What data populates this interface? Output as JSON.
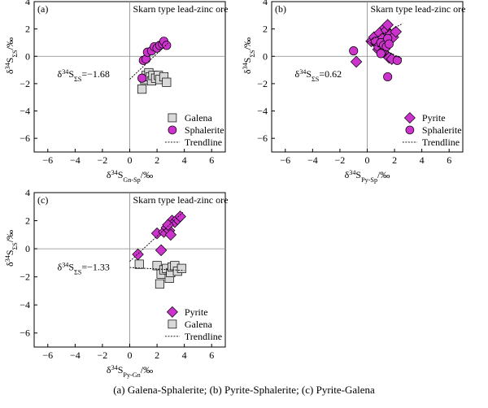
{
  "figure_caption": "(a) Galena-Sphalerite; (b) Pyrite-Sphalerite; (c) Pyrite-Galena",
  "colors": {
    "mineral_fill": "#cc33cc",
    "galena_fill": "#d9d9d9",
    "stroke": "#000000",
    "axis": "#888888"
  },
  "chart_data": [
    {
      "panel": "(a)",
      "type": "scatter",
      "title": "Skarn type lead-zinc ore",
      "xlabel_main": "δ",
      "xlabel_sup": "34",
      "xlabel_after": "S",
      "xlabel_sub": "Gn-Sp",
      "xlabel_tail": "/‰",
      "ylabel_main": "δ",
      "ylabel_sup": "34",
      "ylabel_after": "S",
      "ylabel_sub": "ΣS",
      "ylabel_tail": "/‰",
      "xlim": [
        -7,
        7
      ],
      "ylim": [
        -7,
        4
      ],
      "xticks": [
        -6,
        -4,
        -2,
        0,
        2,
        4,
        6
      ],
      "yticks": [
        4,
        2,
        0,
        -2,
        -4,
        -6
      ],
      "annotation": {
        "text_main": "δ",
        "text_sup": "34",
        "text_after": "S",
        "text_sub": "ΣS",
        "text_tail": "=−1.68"
      },
      "legend": [
        {
          "name": "Galena",
          "marker": "square",
          "color": "#d9d9d9"
        },
        {
          "name": "Sphalerite",
          "marker": "circle",
          "color": "#cc33cc"
        },
        {
          "name": "Trendline",
          "marker": "line"
        }
      ],
      "series": [
        {
          "name": "Galena",
          "marker": "square",
          "color": "#d9d9d9",
          "points": [
            [
              0.9,
              -2.4
            ],
            [
              1.1,
              -1.7
            ],
            [
              1.2,
              -1.4
            ],
            [
              1.4,
              -1.2
            ],
            [
              1.5,
              -1.5
            ],
            [
              1.6,
              -1.8
            ],
            [
              1.7,
              -1.4
            ],
            [
              1.9,
              -1.6
            ],
            [
              2.1,
              -1.4
            ],
            [
              2.2,
              -1.7
            ],
            [
              2.5,
              -1.5
            ],
            [
              2.7,
              -1.9
            ]
          ]
        },
        {
          "name": "Sphalerite",
          "marker": "circle",
          "color": "#cc33cc",
          "points": [
            [
              0.9,
              -1.6
            ],
            [
              1.0,
              -0.3
            ],
            [
              1.2,
              -0.2
            ],
            [
              1.3,
              0.3
            ],
            [
              1.6,
              0.4
            ],
            [
              1.8,
              0.7
            ],
            [
              2.0,
              0.6
            ],
            [
              2.2,
              0.8
            ],
            [
              2.4,
              0.9
            ],
            [
              2.5,
              1.1
            ],
            [
              2.7,
              0.8
            ]
          ]
        }
      ],
      "trendlines": [
        {
          "from": [
            0,
            -1.68
          ],
          "to": [
            2.8,
            0.95
          ]
        }
      ]
    },
    {
      "panel": "(b)",
      "type": "scatter",
      "title": "Skarn type lead-zinc ore",
      "xlabel_main": "δ",
      "xlabel_sup": "34",
      "xlabel_after": "S",
      "xlabel_sub": "Py-Sp",
      "xlabel_tail": "/‰",
      "ylabel_main": "δ",
      "ylabel_sup": "34",
      "ylabel_after": "S",
      "ylabel_sub": "ΣS",
      "ylabel_tail": "/‰",
      "xlim": [
        -7,
        7
      ],
      "ylim": [
        -7,
        4
      ],
      "xticks": [
        -6,
        -4,
        -2,
        0,
        2,
        4,
        6
      ],
      "yticks": [
        4,
        2,
        0,
        -2,
        -4,
        -6
      ],
      "annotation": {
        "text_main": "δ",
        "text_sup": "34",
        "text_after": "S",
        "text_sub": "ΣS",
        "text_tail": "=0.62"
      },
      "legend": [
        {
          "name": "Pyrite",
          "marker": "diamond",
          "color": "#cc33cc"
        },
        {
          "name": "Sphalerite",
          "marker": "circle",
          "color": "#cc33cc"
        },
        {
          "name": "Trendline",
          "marker": "line"
        }
      ],
      "series": [
        {
          "name": "Pyrite",
          "marker": "diamond",
          "color": "#cc33cc",
          "points": [
            [
              -0.8,
              -0.4
            ],
            [
              0.3,
              1.1
            ],
            [
              0.5,
              1.4
            ],
            [
              0.7,
              0.9
            ],
            [
              0.9,
              1.7
            ],
            [
              1.1,
              1.3
            ],
            [
              1.3,
              2.1
            ],
            [
              1.4,
              1.9
            ],
            [
              1.5,
              2.3
            ],
            [
              1.7,
              1.6
            ],
            [
              1.9,
              1.4
            ],
            [
              2.1,
              1.8
            ],
            [
              1.3,
              0.2
            ],
            [
              1.6,
              -0.1
            ],
            [
              1.8,
              -0.2
            ],
            [
              0.8,
              0.5
            ]
          ]
        },
        {
          "name": "Sphalerite",
          "marker": "circle",
          "color": "#cc33cc",
          "points": [
            [
              -1.0,
              0.4
            ],
            [
              0.6,
              1.1
            ],
            [
              0.8,
              0.7
            ],
            [
              1.0,
              1.0
            ],
            [
              1.1,
              0.3
            ],
            [
              1.2,
              0.8
            ],
            [
              1.4,
              0.7
            ],
            [
              1.5,
              1.3
            ],
            [
              1.6,
              0.9
            ],
            [
              1.5,
              -1.5
            ],
            [
              2.2,
              -0.3
            ],
            [
              1.0,
              0.2
            ]
          ]
        }
      ],
      "trendlines": [
        {
          "from": [
            0,
            1.05
          ],
          "to": [
            2.6,
            2.4
          ]
        },
        {
          "from": [
            0,
            1.1
          ],
          "to": [
            2.6,
            -0.2
          ]
        }
      ]
    },
    {
      "panel": "(c)",
      "type": "scatter",
      "title": "Skarn type lead-zinc ore",
      "xlabel_main": "δ",
      "xlabel_sup": "34",
      "xlabel_after": "S",
      "xlabel_sub": "Py-Gn",
      "xlabel_tail": "/‰",
      "ylabel_main": "δ",
      "ylabel_sup": "34",
      "ylabel_after": "S",
      "ylabel_sub": "ΣS",
      "ylabel_tail": "/‰",
      "xlim": [
        -7,
        7
      ],
      "ylim": [
        -7,
        4
      ],
      "xticks": [
        -6,
        -4,
        -2,
        0,
        2,
        4,
        6
      ],
      "yticks": [
        4,
        2,
        0,
        -2,
        -4,
        -6
      ],
      "annotation": {
        "text_main": "δ",
        "text_sup": "34",
        "text_after": "S",
        "text_sub": "ΣS",
        "text_tail": "=−1.33"
      },
      "legend": [
        {
          "name": "Pyrite",
          "marker": "diamond",
          "color": "#cc33cc"
        },
        {
          "name": "Galena",
          "marker": "square",
          "color": "#d9d9d9"
        },
        {
          "name": "Trendline",
          "marker": "line"
        }
      ],
      "series": [
        {
          "name": "Pyrite",
          "marker": "diamond",
          "color": "#cc33cc",
          "points": [
            [
              0.6,
              -0.4
            ],
            [
              2.0,
              1.1
            ],
            [
              2.3,
              -0.1
            ],
            [
              2.5,
              1.2
            ],
            [
              2.7,
              1.5
            ],
            [
              2.9,
              1.3
            ],
            [
              3.0,
              1.0
            ],
            [
              3.1,
              2.0
            ],
            [
              3.3,
              1.9
            ],
            [
              3.5,
              2.1
            ],
            [
              3.7,
              2.3
            ],
            [
              2.8,
              1.7
            ]
          ]
        },
        {
          "name": "Galena",
          "marker": "square",
          "color": "#d9d9d9",
          "points": [
            [
              0.7,
              -1.1
            ],
            [
              2.0,
              -1.2
            ],
            [
              2.2,
              -2.5
            ],
            [
              2.3,
              -1.8
            ],
            [
              2.5,
              -1.5
            ],
            [
              2.7,
              -1.4
            ],
            [
              2.9,
              -2.1
            ],
            [
              3.0,
              -1.7
            ],
            [
              3.1,
              -1.3
            ],
            [
              3.3,
              -1.2
            ],
            [
              3.5,
              -1.6
            ],
            [
              3.8,
              -1.4
            ]
          ]
        }
      ],
      "trendlines": [
        {
          "from": [
            0,
            -1.33
          ],
          "to": [
            4.0,
            -1.55
          ]
        },
        {
          "from": [
            0,
            -0.9
          ],
          "to": [
            3.9,
            2.6
          ]
        }
      ]
    }
  ]
}
